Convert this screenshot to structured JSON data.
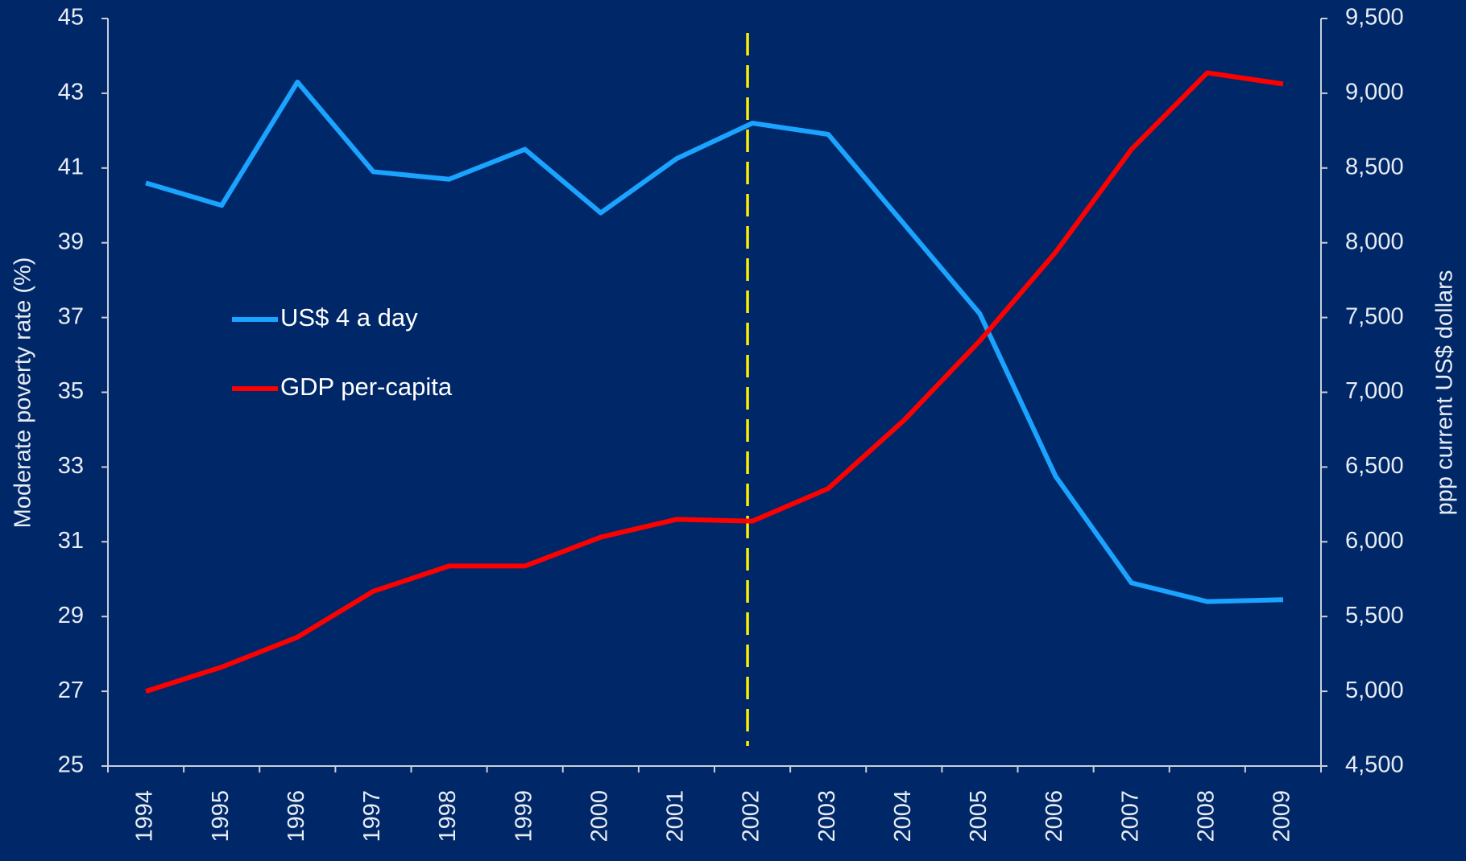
{
  "chart_data": {
    "type": "line",
    "categories": [
      "1994",
      "1995",
      "1996",
      "1997",
      "1998",
      "1999",
      "2000",
      "2001",
      "2002",
      "2003",
      "2004",
      "2005",
      "2006",
      "2007",
      "2008",
      "2009"
    ],
    "series": [
      {
        "name": "US$ 4 a day",
        "color": "#1aa3ff",
        "values": [
          40.6,
          40.0,
          43.3,
          40.9,
          40.7,
          41.5,
          39.8,
          41.25,
          42.2,
          41.9,
          39.5,
          37.1,
          32.75,
          29.9,
          29.4,
          29.45
        ]
      },
      {
        "name": "GDP per-capita",
        "color": "#ff0000",
        "axis": "y2",
        "values": [
          5000,
          5162,
          5362,
          5669,
          5838,
          5838,
          6031,
          6150,
          6138,
          6356,
          6813,
          7344,
          7937,
          8625,
          9137,
          9062
        ]
      }
    ],
    "ylabel": "Moderate poverty rate (%)",
    "y2label": "ppp current US$ dollars",
    "ylim": [
      25,
      45
    ],
    "yticks": [
      25,
      27,
      29,
      31,
      33,
      35,
      37,
      39,
      41,
      43,
      45
    ],
    "y2lim": [
      4500,
      9500
    ],
    "y2ticks": [
      {
        "value": 4500,
        "label": "4,500"
      },
      {
        "value": 5000,
        "label": "5,000"
      },
      {
        "value": 5500,
        "label": "5,500"
      },
      {
        "value": 6000,
        "label": "6,000"
      },
      {
        "value": 6500,
        "label": "6,500"
      },
      {
        "value": 7000,
        "label": "7,000"
      },
      {
        "value": 7500,
        "label": "7,500"
      },
      {
        "value": 8000,
        "label": "8,000"
      },
      {
        "value": 8500,
        "label": "8,500"
      },
      {
        "value": 9000,
        "label": "9,000"
      },
      {
        "value": 9500,
        "label": "9,500"
      }
    ],
    "reference_line": {
      "x": "2002",
      "color": "#ffee00",
      "style": "dashed"
    },
    "background": "#002868"
  }
}
